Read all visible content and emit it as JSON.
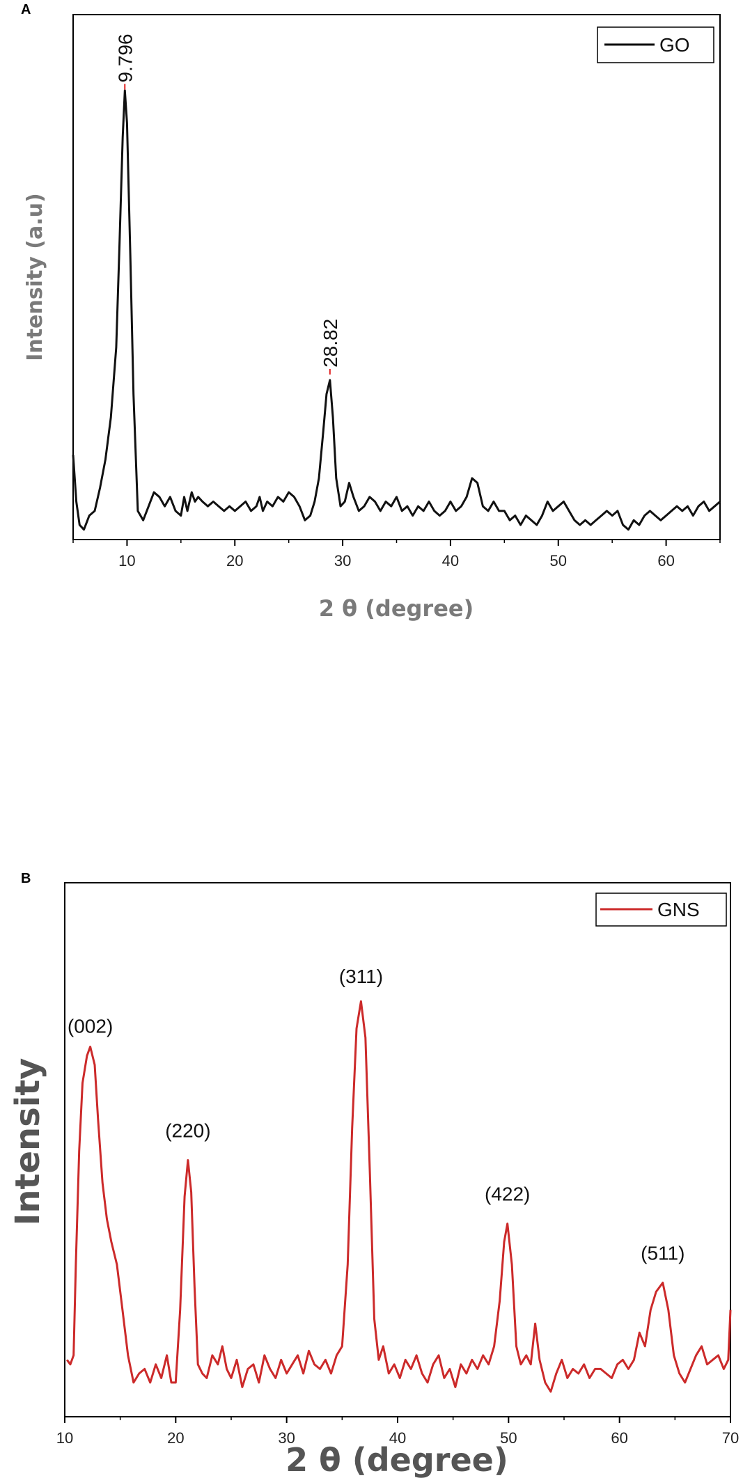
{
  "chart_data": [
    {
      "panel": "A",
      "type": "line",
      "title": "",
      "xlabel": "2 θ (degree)",
      "ylabel": "Intensity (a.u)",
      "xlim": [
        5,
        65
      ],
      "ylim": [
        0,
        1
      ],
      "xticks": [
        10,
        20,
        30,
        40,
        50,
        60
      ],
      "grid": false,
      "legend": {
        "position": "top-right",
        "entries": [
          {
            "name": "GO",
            "color": "#000000"
          }
        ]
      },
      "annotations": [
        {
          "text": "9.796",
          "x": 9.796,
          "y": 0.955
        },
        {
          "text": "28.82",
          "x": 28.82,
          "y": 0.345
        }
      ],
      "series": [
        {
          "name": "GO",
          "color": "#000000",
          "x": [
            5.0,
            5.3,
            5.6,
            6.0,
            6.5,
            7.0,
            7.5,
            8.0,
            8.5,
            9.0,
            9.3,
            9.6,
            9.8,
            10.0,
            10.3,
            10.6,
            11.0,
            11.5,
            12.0,
            12.5,
            13.0,
            13.5,
            14.0,
            14.5,
            15.0,
            15.3,
            15.6,
            16.0,
            16.3,
            16.6,
            17.0,
            17.5,
            18.0,
            18.5,
            19.0,
            19.5,
            20.0,
            20.5,
            21.0,
            21.5,
            22.0,
            22.3,
            22.6,
            23.0,
            23.5,
            24.0,
            24.5,
            25.0,
            25.5,
            26.0,
            26.5,
            27.0,
            27.4,
            27.8,
            28.2,
            28.5,
            28.82,
            29.1,
            29.4,
            29.8,
            30.2,
            30.6,
            31.0,
            31.5,
            32.0,
            32.5,
            33.0,
            33.5,
            34.0,
            34.5,
            35.0,
            35.5,
            36.0,
            36.5,
            37.0,
            37.5,
            38.0,
            38.5,
            39.0,
            39.5,
            40.0,
            40.5,
            41.0,
            41.5,
            42.0,
            42.5,
            43.0,
            43.5,
            44.0,
            44.5,
            45.0,
            45.5,
            46.0,
            46.5,
            47.0,
            47.5,
            48.0,
            48.5,
            49.0,
            49.5,
            50.0,
            50.5,
            51.0,
            51.5,
            52.0,
            52.5,
            53.0,
            53.5,
            54.0,
            54.5,
            55.0,
            55.5,
            56.0,
            56.5,
            57.0,
            57.5,
            58.0,
            58.5,
            59.0,
            59.5,
            60.0,
            60.5,
            61.0,
            61.5,
            62.0,
            62.5,
            63.0,
            63.5,
            64.0,
            64.5,
            65.0
          ],
          "y": [
            0.17,
            0.07,
            0.02,
            0.01,
            0.04,
            0.05,
            0.1,
            0.16,
            0.25,
            0.4,
            0.62,
            0.85,
            0.95,
            0.88,
            0.6,
            0.3,
            0.05,
            0.03,
            0.06,
            0.09,
            0.08,
            0.06,
            0.08,
            0.05,
            0.04,
            0.08,
            0.05,
            0.09,
            0.07,
            0.08,
            0.07,
            0.06,
            0.07,
            0.06,
            0.05,
            0.06,
            0.05,
            0.06,
            0.07,
            0.05,
            0.06,
            0.08,
            0.05,
            0.07,
            0.06,
            0.08,
            0.07,
            0.09,
            0.08,
            0.06,
            0.03,
            0.04,
            0.07,
            0.12,
            0.22,
            0.3,
            0.33,
            0.25,
            0.12,
            0.06,
            0.07,
            0.11,
            0.08,
            0.05,
            0.06,
            0.08,
            0.07,
            0.05,
            0.07,
            0.06,
            0.08,
            0.05,
            0.06,
            0.04,
            0.06,
            0.05,
            0.07,
            0.05,
            0.04,
            0.05,
            0.07,
            0.05,
            0.06,
            0.08,
            0.12,
            0.11,
            0.06,
            0.05,
            0.07,
            0.05,
            0.05,
            0.03,
            0.04,
            0.02,
            0.04,
            0.03,
            0.02,
            0.04,
            0.07,
            0.05,
            0.06,
            0.07,
            0.05,
            0.03,
            0.02,
            0.03,
            0.02,
            0.03,
            0.04,
            0.05,
            0.04,
            0.05,
            0.02,
            0.01,
            0.03,
            0.02,
            0.04,
            0.05,
            0.04,
            0.03,
            0.04,
            0.05,
            0.06,
            0.05,
            0.06,
            0.04,
            0.06,
            0.07,
            0.05,
            0.06,
            0.07
          ]
        }
      ]
    },
    {
      "panel": "B",
      "type": "line",
      "title": "",
      "xlabel": "2 θ (degree)",
      "ylabel": "Intensity",
      "xlim": [
        10,
        70
      ],
      "ylim": [
        0,
        1
      ],
      "xticks": [
        10,
        20,
        30,
        40,
        50,
        60,
        70
      ],
      "grid": false,
      "legend": {
        "position": "top-right",
        "entries": [
          {
            "name": "GNS",
            "color": "#cc2a2a"
          }
        ]
      },
      "annotations": [
        {
          "text": "(002)",
          "x": 12.3,
          "y": 0.78
        },
        {
          "text": "(220)",
          "x": 21.1,
          "y": 0.55
        },
        {
          "text": "(311)",
          "x": 36.7,
          "y": 0.89
        },
        {
          "text": "(422)",
          "x": 49.9,
          "y": 0.41
        },
        {
          "text": "(511)",
          "x": 63.9,
          "y": 0.28
        }
      ],
      "series": [
        {
          "name": "GNS",
          "color": "#cc2a2a",
          "x": [
            10.2,
            10.5,
            10.8,
            11.0,
            11.3,
            11.6,
            12.0,
            12.3,
            12.7,
            13.0,
            13.4,
            13.8,
            14.2,
            14.7,
            15.2,
            15.7,
            16.2,
            16.7,
            17.2,
            17.7,
            18.2,
            18.7,
            19.2,
            19.6,
            20.0,
            20.4,
            20.8,
            21.1,
            21.4,
            21.7,
            22.0,
            22.4,
            22.8,
            23.3,
            23.8,
            24.2,
            24.6,
            25.0,
            25.5,
            26.0,
            26.5,
            27.0,
            27.5,
            28.0,
            28.5,
            29.0,
            29.5,
            30.0,
            30.5,
            31.0,
            31.5,
            32.0,
            32.5,
            33.0,
            33.5,
            34.0,
            34.5,
            35.0,
            35.5,
            35.9,
            36.3,
            36.7,
            37.1,
            37.5,
            37.9,
            38.3,
            38.7,
            39.2,
            39.7,
            40.2,
            40.7,
            41.2,
            41.7,
            42.2,
            42.7,
            43.2,
            43.7,
            44.2,
            44.7,
            45.2,
            45.7,
            46.2,
            46.7,
            47.2,
            47.7,
            48.2,
            48.7,
            49.2,
            49.6,
            49.9,
            50.3,
            50.7,
            51.1,
            51.6,
            52.0,
            52.4,
            52.8,
            53.3,
            53.8,
            54.3,
            54.8,
            55.3,
            55.8,
            56.3,
            56.8,
            57.3,
            57.8,
            58.3,
            58.8,
            59.3,
            59.8,
            60.3,
            60.8,
            61.3,
            61.8,
            62.3,
            62.8,
            63.3,
            63.9,
            64.4,
            64.9,
            65.4,
            65.9,
            66.4,
            66.9,
            67.4,
            67.9,
            68.4,
            68.9,
            69.4,
            69.8,
            70.0
          ],
          "y": [
            0.09,
            0.08,
            0.1,
            0.3,
            0.55,
            0.7,
            0.76,
            0.78,
            0.74,
            0.62,
            0.48,
            0.4,
            0.35,
            0.3,
            0.2,
            0.1,
            0.04,
            0.06,
            0.07,
            0.04,
            0.08,
            0.05,
            0.1,
            0.04,
            0.04,
            0.2,
            0.45,
            0.53,
            0.46,
            0.25,
            0.08,
            0.06,
            0.05,
            0.1,
            0.08,
            0.12,
            0.07,
            0.05,
            0.09,
            0.03,
            0.07,
            0.08,
            0.04,
            0.1,
            0.07,
            0.05,
            0.09,
            0.06,
            0.08,
            0.1,
            0.06,
            0.11,
            0.08,
            0.07,
            0.09,
            0.06,
            0.1,
            0.12,
            0.3,
            0.6,
            0.82,
            0.88,
            0.8,
            0.5,
            0.18,
            0.09,
            0.12,
            0.06,
            0.08,
            0.05,
            0.09,
            0.07,
            0.1,
            0.06,
            0.04,
            0.08,
            0.1,
            0.05,
            0.07,
            0.03,
            0.08,
            0.06,
            0.09,
            0.07,
            0.1,
            0.08,
            0.12,
            0.22,
            0.35,
            0.39,
            0.3,
            0.12,
            0.08,
            0.1,
            0.08,
            0.17,
            0.09,
            0.04,
            0.02,
            0.06,
            0.09,
            0.05,
            0.07,
            0.06,
            0.08,
            0.05,
            0.07,
            0.07,
            0.06,
            0.05,
            0.08,
            0.09,
            0.07,
            0.09,
            0.15,
            0.12,
            0.2,
            0.24,
            0.26,
            0.2,
            0.1,
            0.06,
            0.04,
            0.07,
            0.1,
            0.12,
            0.08,
            0.09,
            0.1,
            0.07,
            0.09,
            0.2
          ]
        }
      ]
    }
  ]
}
